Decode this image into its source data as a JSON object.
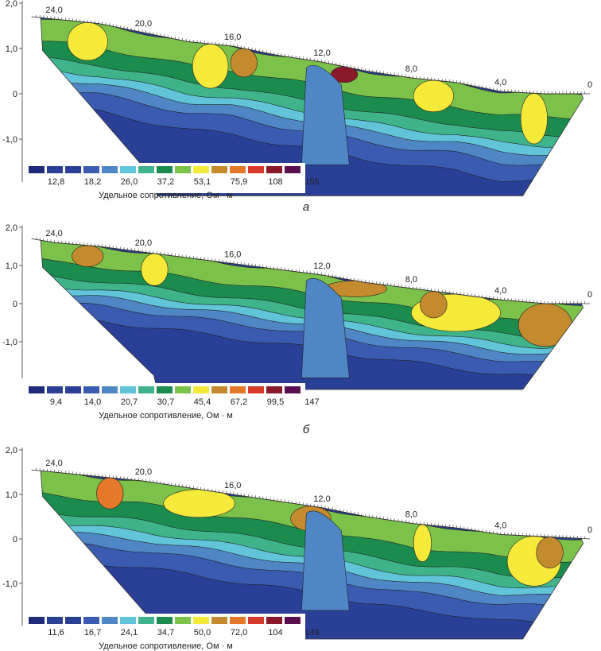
{
  "chart_data": [
    {
      "type": "heatmap",
      "panel_label": "а",
      "x_ticks": [
        "24,0",
        "20,0",
        "16,0",
        "12,0",
        "8,0",
        "4,0",
        "0"
      ],
      "y_ticks": [
        "2,0",
        "1,0",
        "0",
        "-1,0"
      ],
      "ylim": [
        -1.9,
        2.0
      ],
      "x_range": [
        25.0,
        0.0
      ],
      "legend_title": "Удельное сопротивление, Ом · м",
      "legend_values": [
        "12,8",
        "18,2",
        "26,0",
        "37,2",
        "53,1",
        "75,9",
        "108",
        "155"
      ],
      "surface_elevation": [
        [
          25.0,
          1.7
        ],
        [
          24.0,
          1.65
        ],
        [
          22.0,
          1.55
        ],
        [
          20.0,
          1.35
        ],
        [
          18.0,
          1.15
        ],
        [
          16.0,
          1.05
        ],
        [
          14.0,
          0.85
        ],
        [
          12.0,
          0.7
        ],
        [
          10.0,
          0.5
        ],
        [
          8.0,
          0.35
        ],
        [
          6.0,
          0.25
        ],
        [
          4.0,
          0.05
        ],
        [
          2.0,
          0.0
        ],
        [
          0.0,
          0.0
        ]
      ]
    },
    {
      "type": "heatmap",
      "panel_label": "б",
      "x_ticks": [
        "24,0",
        "20,0",
        "16,0",
        "12,0",
        "8,0",
        "4,0",
        "0"
      ],
      "y_ticks": [
        "2,0",
        "1,0",
        "0",
        "-1,0"
      ],
      "ylim": [
        -1.9,
        2.0
      ],
      "x_range": [
        25.0,
        0.0
      ],
      "legend_title": "Удельное сопротивление, Ом · м",
      "legend_values": [
        "9,4",
        "14,0",
        "20,7",
        "30,7",
        "45,4",
        "67,2",
        "99,5",
        "147"
      ],
      "surface_elevation": [
        [
          25.0,
          1.7
        ],
        [
          24.0,
          1.6
        ],
        [
          22.0,
          1.5
        ],
        [
          20.0,
          1.35
        ],
        [
          18.0,
          1.2
        ],
        [
          16.0,
          1.05
        ],
        [
          14.0,
          0.9
        ],
        [
          12.0,
          0.75
        ],
        [
          10.0,
          0.55
        ],
        [
          8.0,
          0.4
        ],
        [
          6.0,
          0.25
        ],
        [
          4.0,
          0.1
        ],
        [
          2.0,
          0.0
        ],
        [
          0.0,
          0.0
        ]
      ]
    },
    {
      "type": "heatmap",
      "panel_label": "",
      "x_ticks": [
        "24,0",
        "20,0",
        "16,0",
        "12,0",
        "8,0",
        "4,0",
        "0"
      ],
      "y_ticks": [
        "2,0",
        "1,0",
        "0",
        "-1,0"
      ],
      "ylim": [
        -1.9,
        2.0
      ],
      "x_range": [
        25.0,
        0.0
      ],
      "legend_title": "Удельное сопротивление, Ом · м",
      "legend_values": [
        "11,6",
        "16,7",
        "24,1",
        "34,7",
        "50,0",
        "72,0",
        "104",
        "149"
      ],
      "surface_elevation": [
        [
          25.0,
          1.55
        ],
        [
          24.0,
          1.5
        ],
        [
          22.0,
          1.4
        ],
        [
          20.0,
          1.3
        ],
        [
          18.0,
          1.15
        ],
        [
          16.0,
          1.0
        ],
        [
          14.0,
          0.85
        ],
        [
          12.0,
          0.7
        ],
        [
          10.0,
          0.5
        ],
        [
          8.0,
          0.35
        ],
        [
          6.0,
          0.25
        ],
        [
          4.0,
          0.1
        ],
        [
          2.0,
          0.05
        ],
        [
          0.0,
          0.0
        ]
      ]
    }
  ],
  "palette": [
    "#1e2a7a",
    "#2a3f96",
    "#3a5bb0",
    "#4f86c6",
    "#62c4d8",
    "#3fb48a",
    "#1b8c4e",
    "#7cc24a",
    "#f5e93a",
    "#c48a2e",
    "#e6782a",
    "#d63a2a",
    "#8a1a2a",
    "#5a1050"
  ]
}
